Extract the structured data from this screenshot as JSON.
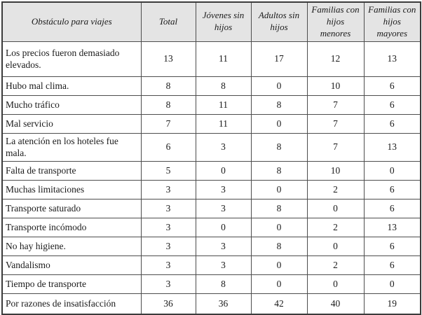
{
  "colors": {
    "header_bg": "#e4e4e4",
    "border": "#4d4d4d",
    "outer_border": "#3b3b3b",
    "text": "#1a1a1a"
  },
  "table": {
    "columns": [
      "Obstáculo para viajes",
      "Total",
      "Jóvenes sin hijos",
      "Adultos sin hijos",
      "Familias con hijos menores",
      "Familias con hijos mayores"
    ],
    "rows": [
      {
        "label": "Los precios fueron demasiado elevados.",
        "values": [
          13,
          11,
          17,
          12,
          13
        ]
      },
      {
        "label": "Hubo mal clima.",
        "values": [
          8,
          8,
          0,
          10,
          6
        ]
      },
      {
        "label": "Mucho tráfico",
        "values": [
          8,
          11,
          8,
          7,
          6
        ]
      },
      {
        "label": "Mal servicio",
        "values": [
          7,
          11,
          0,
          7,
          6
        ]
      },
      {
        "label": "La atención en los hoteles fue mala.",
        "values": [
          6,
          3,
          8,
          7,
          13
        ]
      },
      {
        "label": "Falta de transporte",
        "values": [
          5,
          0,
          8,
          10,
          0
        ]
      },
      {
        "label": "Muchas limitaciones",
        "values": [
          3,
          3,
          0,
          2,
          6
        ]
      },
      {
        "label": "Transporte saturado",
        "values": [
          3,
          3,
          8,
          0,
          6
        ]
      },
      {
        "label": "Transporte incómodo",
        "values": [
          3,
          0,
          0,
          2,
          13
        ]
      },
      {
        "label": "No hay higiene.",
        "values": [
          3,
          3,
          8,
          0,
          6
        ]
      },
      {
        "label": "Vandalismo",
        "values": [
          3,
          3,
          0,
          2,
          6
        ]
      },
      {
        "label": "Tiempo de transporte",
        "values": [
          3,
          8,
          0,
          0,
          0
        ]
      },
      {
        "label": "Por razones de insatisfacción",
        "values": [
          36,
          36,
          42,
          40,
          19
        ]
      }
    ]
  }
}
